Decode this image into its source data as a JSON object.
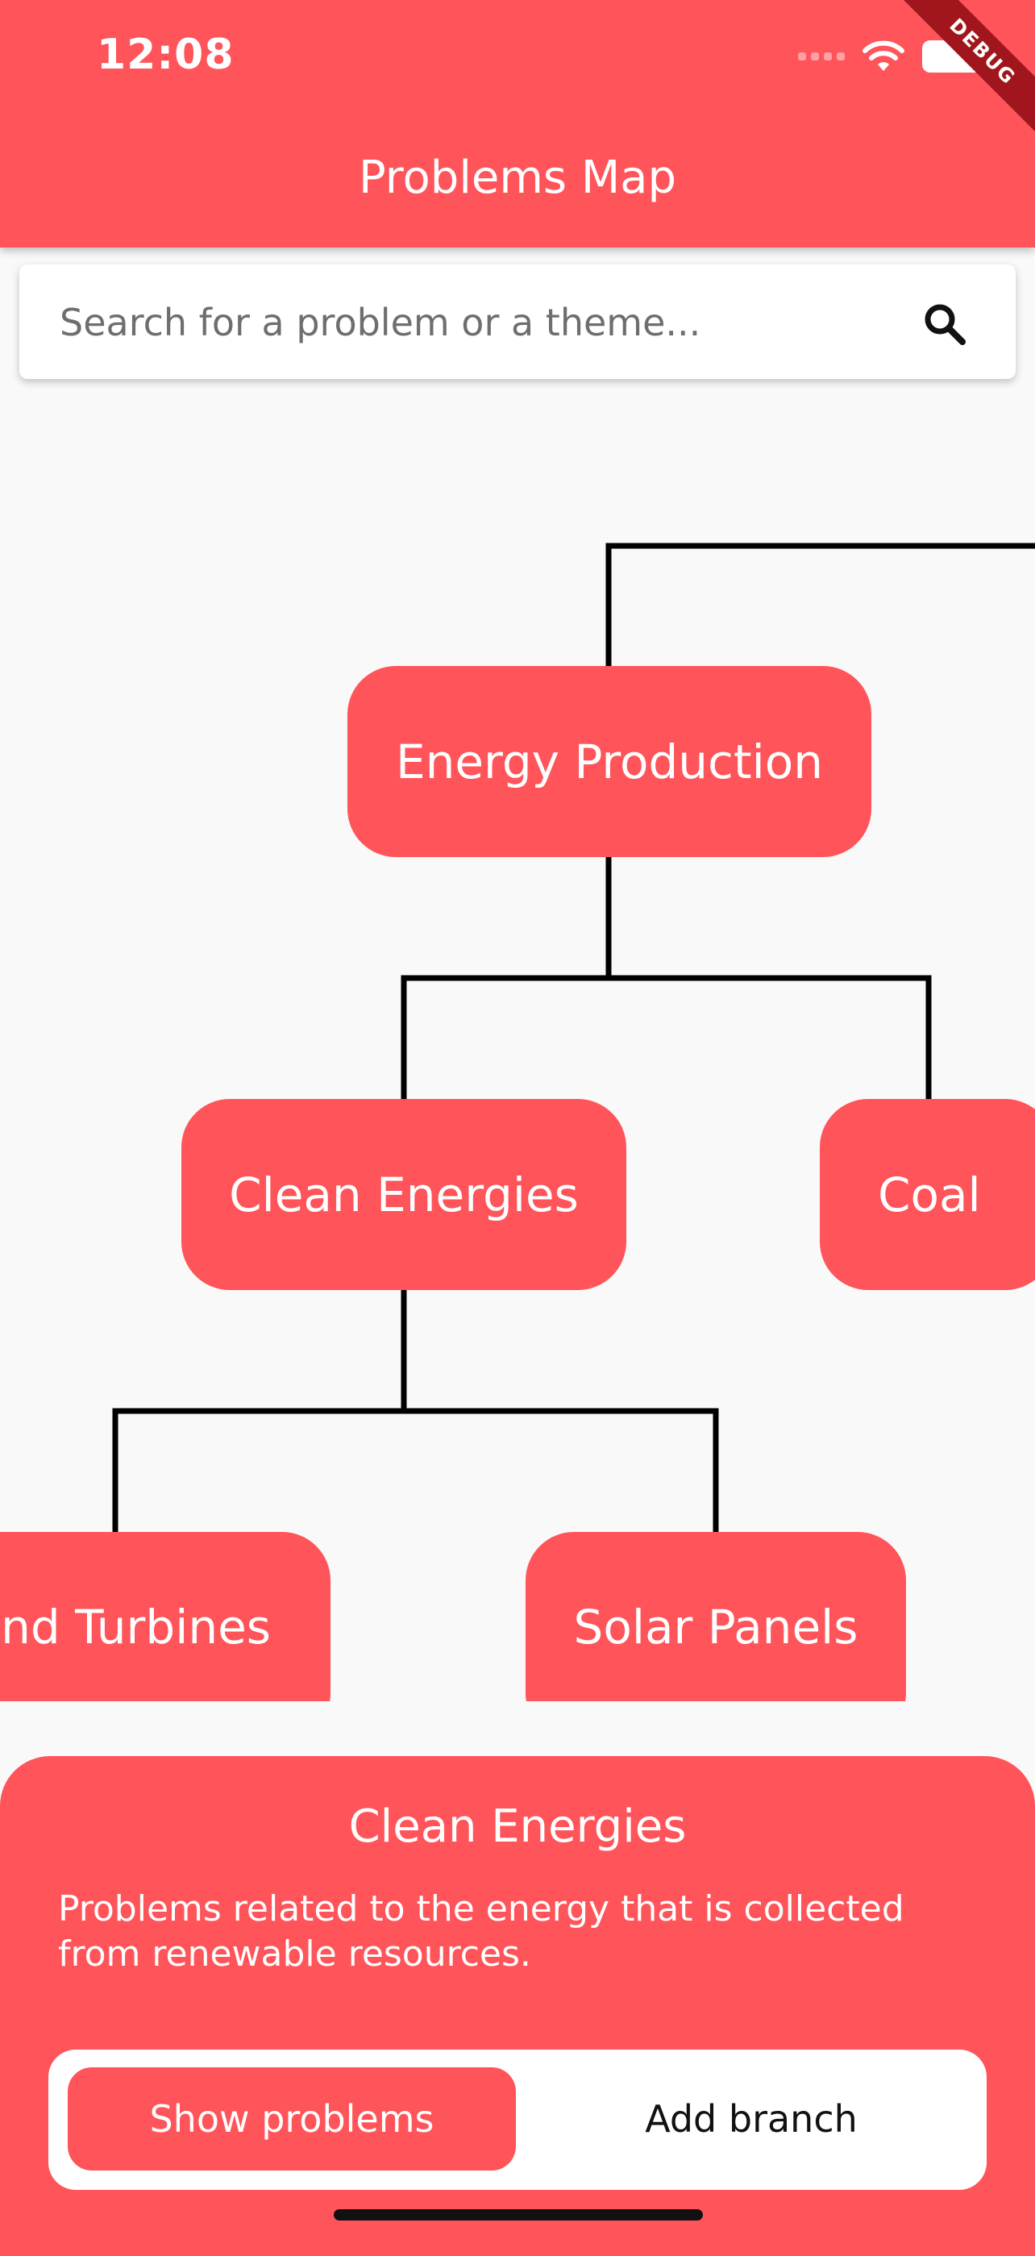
{
  "status_bar": {
    "time": "12:08"
  },
  "debug_banner": "DEBUG",
  "app_bar": {
    "title": "Problems Map"
  },
  "search": {
    "placeholder": "Search for a problem or a theme...",
    "value": "",
    "icon": "search-icon"
  },
  "tree": {
    "nodes": [
      {
        "label": "Energy Production",
        "level": 1
      },
      {
        "label": "Clean Energies",
        "level": 2,
        "parent": "Energy Production"
      },
      {
        "label": "Coal",
        "level": 2,
        "parent": "Energy Production"
      },
      {
        "label": "Wind Turbines",
        "level": 3,
        "parent": "Clean Energies"
      },
      {
        "label": "Solar Panels",
        "level": 3,
        "parent": "Clean Energies"
      }
    ]
  },
  "detail_sheet": {
    "title": "Clean Energies",
    "description": "Problems related to the energy that is collected from renewable resources.",
    "show_problems_label": "Show problems",
    "add_branch_label": "Add branch"
  },
  "colors": {
    "accent": "#ff5459",
    "background": "#f9f9f9",
    "connector": "#000000"
  }
}
